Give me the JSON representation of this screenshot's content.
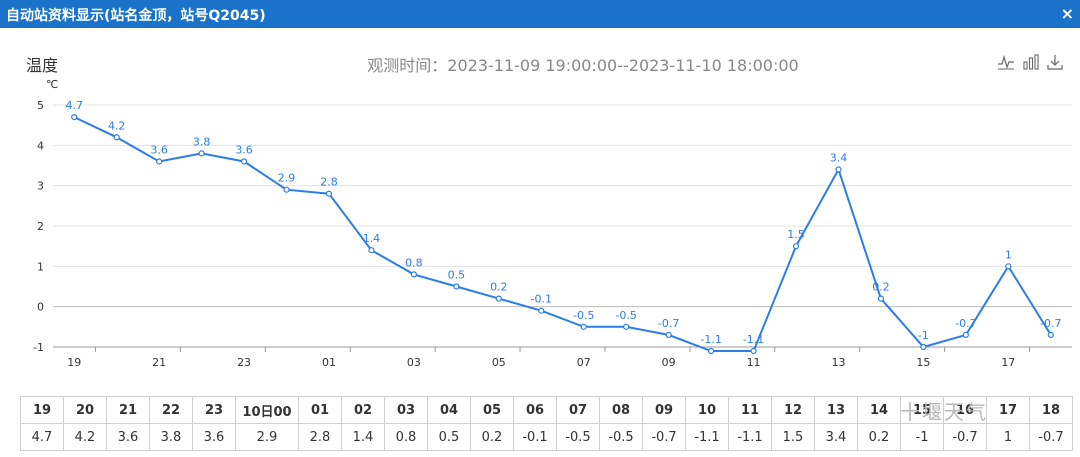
{
  "window": {
    "title": "自动站资料显示(站名金顶，站号Q2045)",
    "close_label": "×"
  },
  "chart_header": {
    "title": "温度",
    "obs_time": "观测时间：2023-11-09 19:00:00--2023-11-10 18:00:00"
  },
  "toolbar": {
    "icons": [
      "line-chart-icon",
      "bar-chart-icon",
      "download-icon"
    ]
  },
  "watermark": "十堰天气",
  "chart_data": {
    "type": "line",
    "title": "温度",
    "ylabel": "℃",
    "xlabel": "",
    "ylim": [
      -1,
      5
    ],
    "yticks": [
      -1,
      0,
      1,
      2,
      3,
      4,
      5
    ],
    "x_tick_labels": [
      "19",
      "21",
      "23",
      "01",
      "03",
      "05",
      "07",
      "09",
      "11",
      "13",
      "15",
      "17"
    ],
    "categories": [
      "19",
      "20",
      "21",
      "22",
      "23",
      "10日00",
      "01",
      "02",
      "03",
      "04",
      "05",
      "06",
      "07",
      "08",
      "09",
      "10",
      "11",
      "12",
      "13",
      "14",
      "15",
      "16",
      "17",
      "18"
    ],
    "values": [
      4.7,
      4.2,
      3.6,
      3.8,
      3.6,
      2.9,
      2.8,
      1.4,
      0.8,
      0.5,
      0.2,
      -0.1,
      -0.5,
      -0.5,
      -0.7,
      -1.1,
      -1.1,
      1.5,
      3.4,
      0.2,
      -1,
      -0.7,
      1,
      -0.7
    ],
    "line_color": "#2b7de9",
    "grid": true
  },
  "table": {
    "hours": [
      "19",
      "20",
      "21",
      "22",
      "23",
      "10日00",
      "01",
      "02",
      "03",
      "04",
      "05",
      "06",
      "07",
      "08",
      "09",
      "10",
      "11",
      "12",
      "13",
      "14",
      "15",
      "16",
      "17",
      "18"
    ],
    "values": [
      "4.7",
      "4.2",
      "3.6",
      "3.8",
      "3.6",
      "2.9",
      "2.8",
      "1.4",
      "0.8",
      "0.5",
      "0.2",
      "-0.1",
      "-0.5",
      "-0.5",
      "-0.7",
      "-1.1",
      "-1.1",
      "1.5",
      "3.4",
      "0.2",
      "-1",
      "-0.7",
      "1",
      "-0.7"
    ]
  }
}
